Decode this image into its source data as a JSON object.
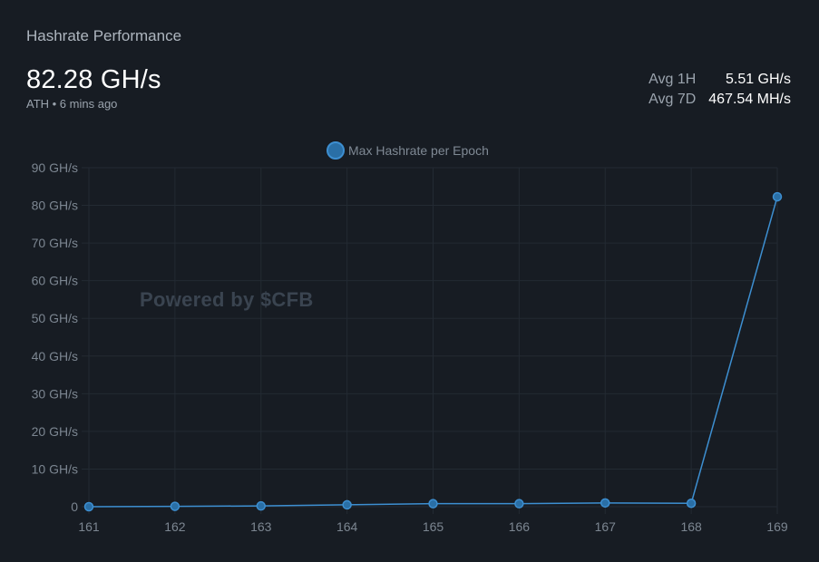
{
  "panel": {
    "title": "Hashrate Performance",
    "headline": "82.28 GH/s",
    "subline": "ATH • 6 mins ago",
    "stats": [
      {
        "label": "Avg 1H",
        "value": "5.51 GH/s"
      },
      {
        "label": "Avg 7D",
        "value": "467.54 MH/s"
      }
    ],
    "watermark": "Powered by $CFB"
  },
  "colors": {
    "background": "#171c23",
    "series": "#3d8fd1",
    "series_fill": "#2a6fa6",
    "grid": "#232a33",
    "tick": "#7c8691"
  },
  "chart_data": {
    "type": "line",
    "x": [
      "161",
      "162",
      "163",
      "164",
      "165",
      "166",
      "167",
      "168",
      "169"
    ],
    "series": [
      {
        "name": "Max Hashrate per Epoch",
        "values": [
          0.0,
          0.1,
          0.2,
          0.5,
          0.8,
          0.8,
          1.0,
          0.9,
          82.28
        ]
      }
    ],
    "y_ticks": [
      "0",
      "10 GH/s",
      "20 GH/s",
      "30 GH/s",
      "40 GH/s",
      "50 GH/s",
      "60 GH/s",
      "70 GH/s",
      "80 GH/s",
      "90 GH/s"
    ],
    "ylim": [
      0,
      90
    ],
    "grid": true,
    "legend_position": "top"
  }
}
